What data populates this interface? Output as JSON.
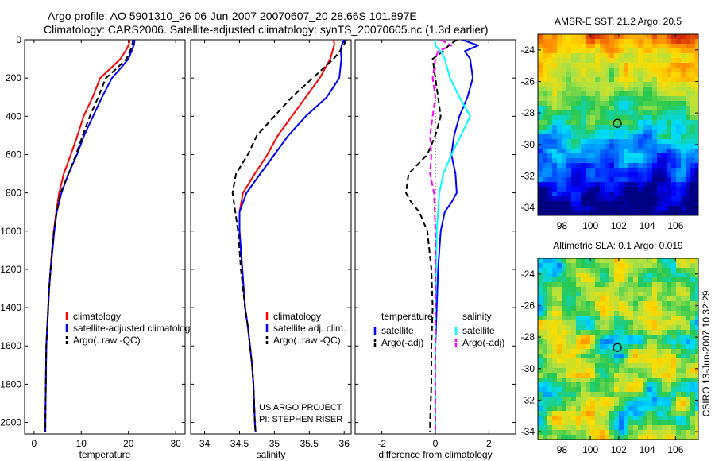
{
  "header": {
    "title_line1": "Argo profile: AO 5901310_26 06-Jun-2007 20070607_20 28.66S 101.897E",
    "title_line2": "Climatology: CARS2006. Satellite-adjusted climatology: synTS_20070605.nc (1.3d earlier)"
  },
  "side_stamp": "CSIRO 13-Jun-2007 10:32:29",
  "colors": {
    "climatology": "#ff0000",
    "satellite": "#0000ff",
    "argo": "#000000",
    "salinity_satellite": "#00ffff",
    "salinity_argo": "#ff00ff"
  },
  "chart_data": [
    {
      "type": "line",
      "id": "temperature",
      "xlabel": "temperature",
      "ylabel": "",
      "xlim": [
        -2,
        32
      ],
      "ylim": [
        2060,
        0
      ],
      "xticks": [
        0,
        10,
        20,
        30
      ],
      "yticks": [
        0,
        200,
        400,
        600,
        800,
        1000,
        1200,
        1400,
        1600,
        1800,
        2000
      ],
      "legend": [
        "climatology",
        "satellite-adjusted climatology",
        "Argo(..raw -QC)"
      ],
      "legend_position": "lower-right",
      "series": [
        {
          "name": "climatology",
          "color": "#ff0000",
          "dash": "solid",
          "x": [
            20.3,
            20.1,
            19.6,
            18.3,
            16.2,
            14.0,
            12.4,
            10.5,
            9.2,
            7.8,
            6.3,
            5.3,
            4.7,
            4.2,
            3.8,
            3.5,
            3.2,
            3.0,
            2.8,
            2.6,
            2.5,
            2.4,
            2.4
          ],
          "y": [
            0,
            25,
            50,
            100,
            150,
            200,
            300,
            400,
            500,
            600,
            700,
            800,
            900,
            1000,
            1100,
            1200,
            1300,
            1400,
            1500,
            1600,
            1800,
            2000,
            2050
          ]
        },
        {
          "name": "satellite-adjusted climatology",
          "color": "#0000ff",
          "dash": "solid",
          "x": [
            21.3,
            21.2,
            20.8,
            20.0,
            18.3,
            16.5,
            14.4,
            12.5,
            10.6,
            9.1,
            7.3,
            5.8,
            4.8,
            4.3,
            3.9,
            3.5,
            3.2,
            3.0,
            2.8,
            2.6,
            2.5,
            2.4,
            2.4
          ],
          "y": [
            0,
            25,
            50,
            100,
            150,
            200,
            300,
            400,
            500,
            600,
            700,
            800,
            900,
            1000,
            1100,
            1200,
            1300,
            1400,
            1500,
            1600,
            1800,
            2000,
            2050
          ]
        },
        {
          "name": "Argo(..raw -QC)",
          "color": "#000000",
          "dash": "dash",
          "x": [
            21.0,
            20.8,
            20.5,
            19.6,
            17.5,
            15.2,
            13.6,
            11.8,
            10.3,
            8.9,
            7.3,
            5.6,
            4.8,
            4.2,
            3.8,
            3.5,
            3.2,
            3.0,
            2.8,
            2.6,
            2.5,
            2.4,
            2.4
          ],
          "y": [
            0,
            25,
            50,
            100,
            150,
            200,
            300,
            400,
            500,
            600,
            700,
            800,
            900,
            1000,
            1100,
            1200,
            1300,
            1400,
            1500,
            1600,
            1800,
            2000,
            2050
          ]
        }
      ]
    },
    {
      "type": "line",
      "id": "salinity",
      "xlabel": "salinity",
      "ylabel": "",
      "xlim": [
        33.8,
        36.1
      ],
      "ylim": [
        2060,
        0
      ],
      "xticks": [
        34,
        34.5,
        35,
        35.5,
        36
      ],
      "xticklabels": [
        "34",
        "34.5",
        "35",
        "35.5",
        "36"
      ],
      "yticks": [
        0,
        200,
        400,
        600,
        800,
        1000,
        1200,
        1400,
        1600,
        1800,
        2000
      ],
      "legend": [
        "climatology",
        "satellite adj. clim.",
        "Argo(..raw -QC)"
      ],
      "legend_position": "lower-right",
      "annotations": [
        "US ARGO PROJECT",
        "PI: STEPHEN RISER"
      ],
      "series": [
        {
          "name": "climatology",
          "color": "#ff0000",
          "dash": "solid",
          "x": [
            35.85,
            35.86,
            35.84,
            35.8,
            35.65,
            35.45,
            35.25,
            35.05,
            34.9,
            34.72,
            34.55,
            34.5,
            34.5,
            34.54,
            34.58,
            34.62,
            34.65,
            34.68,
            34.7,
            34.72,
            34.73
          ],
          "y": [
            0,
            25,
            50,
            100,
            200,
            300,
            400,
            500,
            600,
            700,
            800,
            900,
            1000,
            1200,
            1400,
            1500,
            1600,
            1700,
            1800,
            2000,
            2050
          ]
        },
        {
          "name": "satellite adj. clim.",
          "color": "#0000ff",
          "dash": "solid",
          "x": [
            36.0,
            35.97,
            35.95,
            35.96,
            35.93,
            35.75,
            35.45,
            35.2,
            35.0,
            34.8,
            34.6,
            34.5,
            34.5,
            34.54,
            34.58,
            34.62,
            34.65,
            34.68,
            34.7,
            34.72,
            34.73
          ],
          "y": [
            0,
            25,
            50,
            100,
            200,
            300,
            400,
            500,
            600,
            700,
            800,
            900,
            1000,
            1200,
            1400,
            1500,
            1600,
            1700,
            1800,
            2000,
            2050
          ]
        },
        {
          "name": "Argo(..raw -QC)",
          "color": "#000000",
          "dash": "dash",
          "x": [
            36.03,
            36.0,
            35.96,
            35.85,
            35.55,
            35.25,
            35.0,
            34.75,
            34.62,
            34.45,
            34.4,
            34.44,
            34.48,
            34.52,
            34.58,
            34.62,
            34.65,
            34.68,
            34.7,
            34.72,
            34.73
          ],
          "y": [
            0,
            25,
            50,
            100,
            200,
            300,
            400,
            500,
            600,
            700,
            800,
            900,
            1000,
            1200,
            1400,
            1500,
            1600,
            1700,
            1800,
            2000,
            2050
          ]
        }
      ]
    },
    {
      "type": "line",
      "id": "difference",
      "xlabel": "difference from climatology",
      "ylabel": "",
      "xlim": [
        -3.0,
        3.0
      ],
      "ylim": [
        2060,
        0
      ],
      "xticks": [
        -2,
        0,
        2
      ],
      "xticklabels": [
        "-2",
        "0",
        "2"
      ],
      "yticks": [
        0,
        200,
        400,
        600,
        800,
        1000,
        1200,
        1400,
        1600,
        1800,
        2000
      ],
      "zero_line": "dotted",
      "legend_groups": [
        {
          "heading": "temperature",
          "entries": [
            "satellite",
            "Argo(-adj)"
          ]
        },
        {
          "heading": "salinity",
          "entries": [
            "satellite",
            "Argo(-adj)"
          ]
        }
      ],
      "legend_position": "lower",
      "series": [
        {
          "name": "temperature satellite",
          "color": "#0000ff",
          "dash": "solid",
          "x": [
            1.0,
            1.6,
            1.1,
            1.3,
            1.4,
            1.2,
            0.9,
            0.7,
            0.6,
            0.75,
            0.8,
            0.6,
            0.35,
            0.2,
            0.1,
            0.05,
            0.0,
            0.0,
            0.0,
            0.0
          ],
          "y": [
            0,
            30,
            60,
            100,
            200,
            300,
            400,
            500,
            600,
            700,
            800,
            850,
            900,
            1000,
            1200,
            1400,
            1600,
            1800,
            2000,
            2050
          ]
        },
        {
          "name": "temperature Argo(-adj)",
          "color": "#000000",
          "dash": "dash",
          "x": [
            0.8,
            0.5,
            0.3,
            -0.1,
            0.0,
            0.1,
            0.2,
            0.0,
            -0.3,
            -1.0,
            -1.1,
            -0.9,
            -0.6,
            -0.3,
            -0.15,
            -0.1,
            -0.15,
            -0.15,
            -0.2,
            -0.2
          ],
          "y": [
            0,
            30,
            60,
            100,
            200,
            300,
            400,
            500,
            600,
            700,
            800,
            850,
            900,
            1000,
            1200,
            1400,
            1600,
            1800,
            2000,
            2050
          ]
        },
        {
          "name": "salinity satellite",
          "color": "#00ffff",
          "dash": "solid",
          "x": [
            0.0,
            0.0,
            0.2,
            0.35,
            0.55,
            0.9,
            1.3,
            0.95,
            0.6,
            0.3,
            0.15,
            0.05,
            0.0,
            0.0,
            0.0
          ],
          "y": [
            0,
            30,
            60,
            100,
            200,
            300,
            400,
            500,
            600,
            700,
            800,
            1000,
            1400,
            1800,
            2050
          ]
        },
        {
          "name": "salinity Argo(-adj)",
          "color": "#ff00ff",
          "dash": "dash",
          "x": [
            0.2,
            0.6,
            0.1,
            0.0,
            -0.1,
            0.0,
            -0.1,
            -0.2,
            -0.15,
            -0.2,
            -0.05,
            0.0,
            0.0,
            0.0,
            0.0
          ],
          "y": [
            0,
            30,
            60,
            100,
            200,
            300,
            400,
            500,
            600,
            700,
            800,
            1000,
            1400,
            1800,
            2050
          ]
        }
      ]
    },
    {
      "type": "heatmap",
      "id": "amsre-sst",
      "title": "AMSR-E SST: 21.2  Argo: 20.5",
      "xlim": [
        96.3,
        107.6
      ],
      "ylim": [
        -34.5,
        -23.0
      ],
      "xticks": [
        98,
        100,
        102,
        104,
        106
      ],
      "yticks": [
        -24,
        -26,
        -28,
        -30,
        -32,
        -34
      ],
      "marker": {
        "lon": 101.9,
        "lat": -28.66,
        "shape": "circle"
      }
    },
    {
      "type": "heatmap",
      "id": "altimetric-sla",
      "title": "Altimetric SLA: 0.1  Argo: 0.019",
      "xlim": [
        96.3,
        107.6
      ],
      "ylim": [
        -34.5,
        -23.0
      ],
      "xticks": [
        98,
        100,
        102,
        104,
        106
      ],
      "yticks": [
        -24,
        -26,
        -28,
        -30,
        -32,
        -34
      ],
      "marker": {
        "lon": 101.9,
        "lat": -28.66,
        "shape": "circle"
      }
    }
  ]
}
